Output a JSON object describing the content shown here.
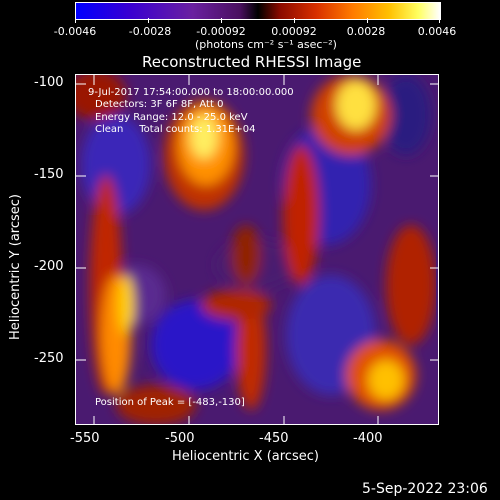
{
  "colorbar": {
    "labels": [
      "-0.0046",
      "-0.0028",
      "-0.00092",
      "0.00092",
      "0.0028",
      "0.0046"
    ],
    "units": "(photons cm⁻² s⁻¹ asec⁻²)"
  },
  "title": "Reconstructed RHESSI Image",
  "annotations": {
    "time": "9-Jul-2017 17:54:00.000 to 18:00:00.000",
    "detectors": "Detectors: 3F 6F 8F, Att 0",
    "energy": "Energy Range: 12.0 - 25.0 keV",
    "clean": "Clean     Total counts: 1.31E+04",
    "peak": "Position of Peak = [-483,-130]"
  },
  "axes": {
    "xlabel": "Heliocentric X (arcsec)",
    "ylabel": "Heliocentric Y (arcsec)",
    "xticks": [
      "-550",
      "-500",
      "-450",
      "-400"
    ],
    "yticks": [
      "-100",
      "-150",
      "-200",
      "-250"
    ]
  },
  "footer": "5-Sep-2022 23:06",
  "image": {
    "peak_x": -483,
    "peak_y": -130,
    "xlim": [
      -556,
      -371
    ],
    "ylim": [
      -287,
      -96
    ]
  }
}
